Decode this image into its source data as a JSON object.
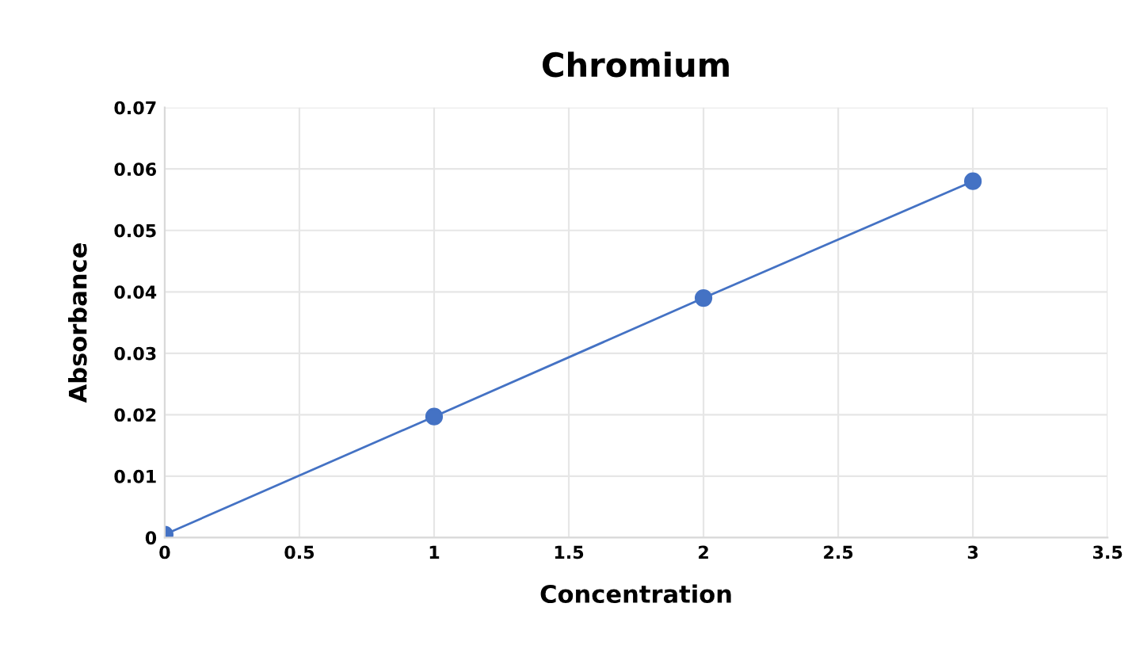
{
  "chart_data": {
    "type": "line",
    "title": "Chromium",
    "xlabel": "Concentration",
    "ylabel": "Absorbance",
    "x": [
      0,
      1,
      2,
      3
    ],
    "series": [
      {
        "color": "#4472c4",
        "values": [
          0.0005,
          0.0197,
          0.039,
          0.058
        ]
      }
    ],
    "xlim": [
      0,
      3.5
    ],
    "xticks": [
      0,
      0.5,
      1,
      1.5,
      2,
      2.5,
      3,
      3.5
    ],
    "ylim": [
      0,
      0.07
    ],
    "yticks": [
      {
        "value": 0,
        "label": "0"
      },
      0.01,
      0.02,
      0.03,
      0.04,
      0.05,
      0.06,
      0.07
    ],
    "grid": true,
    "marker": "circle",
    "line_style": "solid",
    "legend": false
  }
}
